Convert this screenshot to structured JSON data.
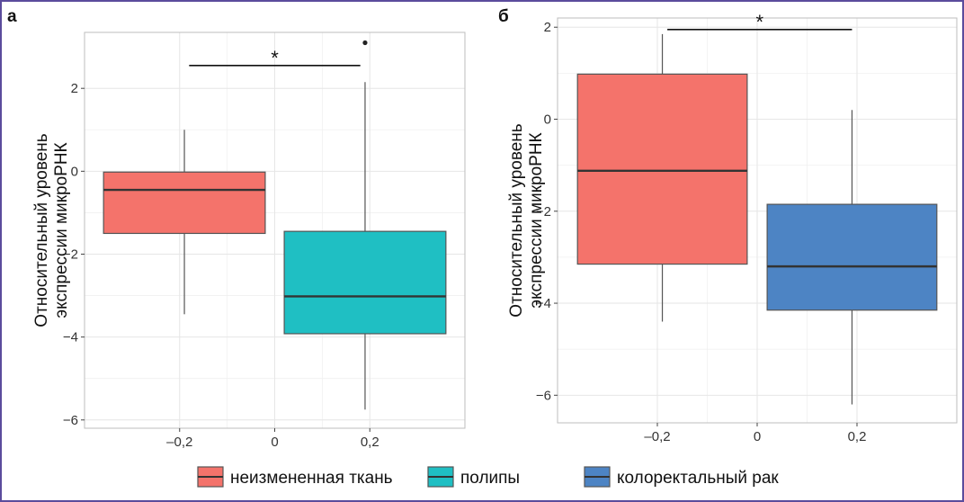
{
  "chart_data": [
    {
      "type": "box",
      "panel_label": "а",
      "ylabel": [
        "Относительный уровень",
        "экспрессии микроРНК"
      ],
      "xlim": [
        -0.4,
        0.4
      ],
      "ylim": [
        -6.2,
        3.35
      ],
      "x_ticks": [
        {
          "value": -0.2,
          "label": "–0,2"
        },
        {
          "value": 0,
          "label": "0"
        },
        {
          "value": 0.2,
          "label": "0,2"
        }
      ],
      "y_ticks": [
        {
          "value": -6,
          "label": "−6"
        },
        {
          "value": -4,
          "label": "−4"
        },
        {
          "value": -2,
          "label": "−2"
        },
        {
          "value": 0,
          "label": "0"
        },
        {
          "value": 2,
          "label": "2"
        }
      ],
      "grid": true,
      "boxes": [
        {
          "group": "неизмененная ткань",
          "x_range": [
            -0.36,
            -0.02
          ],
          "whisker_low": -3.45,
          "q1": -1.5,
          "median": -0.45,
          "q3": -0.02,
          "whisker_high": 1.0,
          "outliers": [],
          "color": "#f4736b"
        },
        {
          "group": "полипы",
          "x_range": [
            0.02,
            0.36
          ],
          "whisker_low": -5.75,
          "q1": -3.92,
          "median": -3.02,
          "q3": -1.45,
          "whisker_high": 2.15,
          "outliers": [
            3.1
          ],
          "color": "#1fbfc3"
        }
      ],
      "significance": {
        "x1": -0.18,
        "x2": 0.18,
        "y": 2.55,
        "label": "*"
      }
    },
    {
      "type": "box",
      "panel_label": "б",
      "ylabel": [
        "Относительный уровень",
        "экспрессии микроРНК"
      ],
      "xlim": [
        -0.4,
        0.4
      ],
      "ylim": [
        -6.6,
        2.2
      ],
      "x_ticks": [
        {
          "value": -0.2,
          "label": "–0,2"
        },
        {
          "value": 0,
          "label": "0"
        },
        {
          "value": 0.2,
          "label": "0,2"
        }
      ],
      "y_ticks": [
        {
          "value": -6,
          "label": "−6"
        },
        {
          "value": -4,
          "label": "−4"
        },
        {
          "value": -2,
          "label": "−2"
        },
        {
          "value": 0,
          "label": "0"
        },
        {
          "value": 2,
          "label": "2"
        }
      ],
      "grid": true,
      "boxes": [
        {
          "group": "неизмененная ткань",
          "x_range": [
            -0.36,
            -0.02
          ],
          "whisker_low": -4.4,
          "q1": -3.15,
          "median": -1.12,
          "q3": 0.98,
          "whisker_high": 1.85,
          "outliers": [],
          "color": "#f4736b"
        },
        {
          "group": "колоректальный рак",
          "x_range": [
            0.02,
            0.36
          ],
          "whisker_low": -6.2,
          "q1": -4.15,
          "median": -3.2,
          "q3": -1.85,
          "whisker_high": 0.2,
          "outliers": [],
          "color": "#4d84c4"
        }
      ],
      "significance": {
        "x1": -0.18,
        "x2": 0.19,
        "y": 1.95,
        "label": "*"
      }
    }
  ],
  "legend": {
    "placement": "bottom",
    "items": [
      {
        "label": "неизмененная ткань",
        "color": "#f4736b"
      },
      {
        "label": "полипы",
        "color": "#1fbfc3"
      },
      {
        "label": "колоректальный рак",
        "color": "#4d84c4"
      }
    ]
  }
}
